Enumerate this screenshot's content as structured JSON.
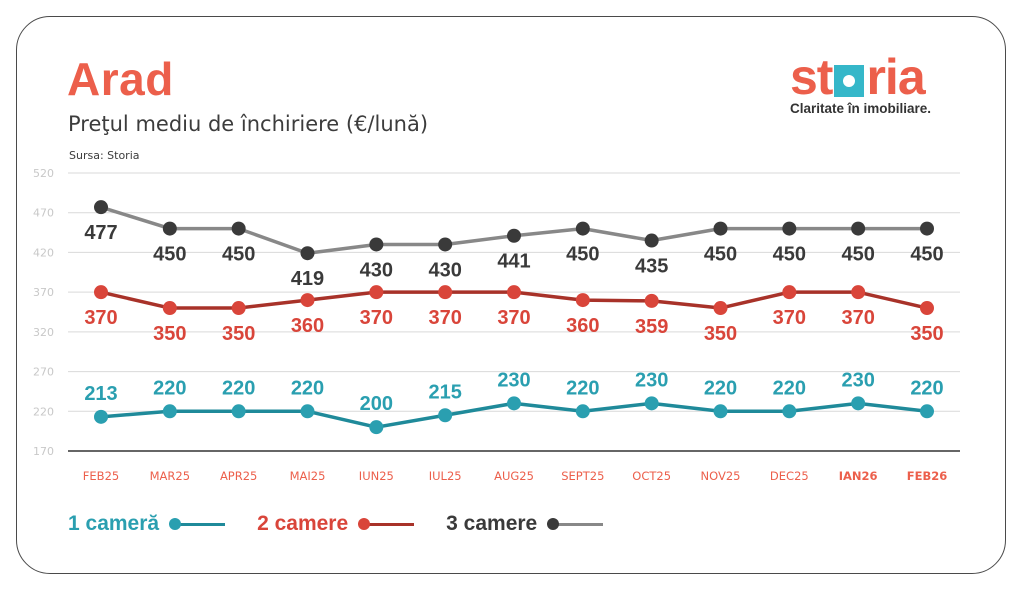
{
  "header": {
    "city": "Arad",
    "subtitle": "Preţul mediu de închiriere (€/lună)",
    "source": "Sursa: Storia"
  },
  "logo": {
    "word_left": "st",
    "word_right": "ria",
    "tagline": "Claritate în imobiliare.",
    "brand_color": "#ec5f4b",
    "accent_color": "#35b7c9"
  },
  "chart_data": {
    "type": "line",
    "title": "Preţul mediu de închiriere (€/lună)",
    "xlabel": "",
    "ylabel": "",
    "ylim": [
      170,
      520
    ],
    "yticks": [
      520,
      470,
      420,
      370,
      320,
      270,
      220,
      170
    ],
    "grid": true,
    "legend_position": "bottom-left",
    "categories": [
      "FEB25",
      "MAR25",
      "APR25",
      "MAI25",
      "IUN25",
      "IUL25",
      "AUG25",
      "SEPT25",
      "OCT25",
      "NOV25",
      "DEC25",
      "IAN26",
      "FEB26"
    ],
    "bold_categories": [
      "IAN26",
      "FEB26"
    ],
    "series": [
      {
        "name": "1 cameră",
        "color": "#2a9fb0",
        "line_color": "#1f8a9a",
        "label_position": "above",
        "values": [
          213,
          220,
          220,
          220,
          200,
          215,
          230,
          220,
          230,
          220,
          220,
          230,
          220
        ]
      },
      {
        "name": "2 camere",
        "color": "#d9453a",
        "line_color": "#a83229",
        "label_position": "below",
        "values": [
          370,
          350,
          350,
          360,
          370,
          370,
          370,
          360,
          359,
          350,
          370,
          370,
          350
        ]
      },
      {
        "name": "3 camere",
        "color": "#3a3a3a",
        "line_color": "#888888",
        "label_position": "below",
        "values": [
          477,
          450,
          450,
          419,
          430,
          430,
          441,
          450,
          435,
          450,
          450,
          450,
          450
        ]
      }
    ]
  }
}
